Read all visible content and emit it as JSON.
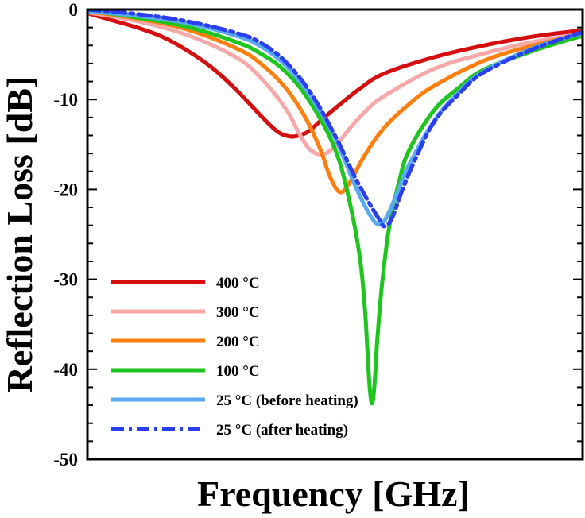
{
  "chart_data": {
    "type": "line",
    "title": "",
    "xlabel": "Frequency [GHz]",
    "ylabel": "Reflection Loss [dB]",
    "ylim": [
      -50,
      0
    ],
    "xlim": [
      0,
      1
    ],
    "yticks": [
      0,
      -10,
      -20,
      -30,
      -40,
      -50
    ],
    "grid": false,
    "legend_position": "bottom-left",
    "series": [
      {
        "name": "400 °C",
        "color": "#d40e0e",
        "style": "solid",
        "points": [
          [
            0,
            -0.4
          ],
          [
            0.05,
            -1.2
          ],
          [
            0.1,
            -2.0
          ],
          [
            0.15,
            -3.0
          ],
          [
            0.2,
            -4.5
          ],
          [
            0.25,
            -6.4
          ],
          [
            0.3,
            -8.9
          ],
          [
            0.35,
            -11.8
          ],
          [
            0.38,
            -13.4
          ],
          [
            0.4,
            -14.0
          ],
          [
            0.42,
            -14.1
          ],
          [
            0.445,
            -13.6
          ],
          [
            0.47,
            -12.4
          ],
          [
            0.5,
            -11.0
          ],
          [
            0.55,
            -8.8
          ],
          [
            0.6,
            -7.1
          ],
          [
            0.7,
            -5.3
          ],
          [
            0.8,
            -4.0
          ],
          [
            0.9,
            -3.0
          ],
          [
            1.0,
            -2.3
          ]
        ]
      },
      {
        "name": "300 °C",
        "color": "#f8a8a8",
        "style": "solid",
        "points": [
          [
            0,
            -0.3
          ],
          [
            0.1,
            -1.3
          ],
          [
            0.2,
            -2.8
          ],
          [
            0.3,
            -5.3
          ],
          [
            0.35,
            -7.6
          ],
          [
            0.4,
            -11.0
          ],
          [
            0.43,
            -14.0
          ],
          [
            0.45,
            -15.6
          ],
          [
            0.475,
            -16.1
          ],
          [
            0.5,
            -15.2
          ],
          [
            0.53,
            -13.2
          ],
          [
            0.56,
            -11.4
          ],
          [
            0.6,
            -9.6
          ],
          [
            0.7,
            -6.6
          ],
          [
            0.8,
            -4.9
          ],
          [
            0.9,
            -3.6
          ],
          [
            1.0,
            -2.7
          ]
        ]
      },
      {
        "name": "200 °C",
        "color": "#ff7f0e",
        "style": "solid",
        "points": [
          [
            0,
            -0.2
          ],
          [
            0.1,
            -1.0
          ],
          [
            0.2,
            -2.2
          ],
          [
            0.3,
            -4.3
          ],
          [
            0.35,
            -6.0
          ],
          [
            0.4,
            -8.7
          ],
          [
            0.44,
            -12.0
          ],
          [
            0.47,
            -15.5
          ],
          [
            0.49,
            -18.6
          ],
          [
            0.51,
            -20.3
          ],
          [
            0.53,
            -19.2
          ],
          [
            0.56,
            -16.2
          ],
          [
            0.6,
            -13.1
          ],
          [
            0.65,
            -10.5
          ],
          [
            0.7,
            -8.5
          ],
          [
            0.8,
            -5.7
          ],
          [
            0.9,
            -4.0
          ],
          [
            1.0,
            -2.7
          ]
        ]
      },
      {
        "name": "100 °C",
        "color": "#1ec51e",
        "style": "solid",
        "points": [
          [
            0,
            -0.1
          ],
          [
            0.1,
            -0.9
          ],
          [
            0.2,
            -1.9
          ],
          [
            0.3,
            -3.6
          ],
          [
            0.35,
            -4.9
          ],
          [
            0.4,
            -6.9
          ],
          [
            0.45,
            -10.3
          ],
          [
            0.5,
            -15.5
          ],
          [
            0.53,
            -21.5
          ],
          [
            0.55,
            -27.5
          ],
          [
            0.56,
            -33.0
          ],
          [
            0.565,
            -37.5
          ],
          [
            0.57,
            -42.0
          ],
          [
            0.575,
            -43.8
          ],
          [
            0.58,
            -41.5
          ],
          [
            0.585,
            -37.0
          ],
          [
            0.595,
            -30.5
          ],
          [
            0.61,
            -24.0
          ],
          [
            0.63,
            -19.0
          ],
          [
            0.65,
            -15.6
          ],
          [
            0.7,
            -11.2
          ],
          [
            0.75,
            -8.7
          ],
          [
            0.8,
            -6.7
          ],
          [
            0.9,
            -4.6
          ],
          [
            1.0,
            -2.9
          ]
        ]
      },
      {
        "name": "25 °C (before heating)",
        "color": "#5aaaf0",
        "style": "solid",
        "points": [
          [
            0,
            -0.2
          ],
          [
            0.1,
            -0.7
          ],
          [
            0.2,
            -1.5
          ],
          [
            0.3,
            -2.9
          ],
          [
            0.35,
            -4.1
          ],
          [
            0.4,
            -6.2
          ],
          [
            0.45,
            -9.6
          ],
          [
            0.5,
            -14.3
          ],
          [
            0.54,
            -19.5
          ],
          [
            0.56,
            -21.8
          ],
          [
            0.58,
            -23.6
          ],
          [
            0.595,
            -23.8
          ],
          [
            0.61,
            -22.4
          ],
          [
            0.63,
            -19.8
          ],
          [
            0.65,
            -17.2
          ],
          [
            0.7,
            -12.4
          ],
          [
            0.75,
            -9.2
          ],
          [
            0.8,
            -6.9
          ],
          [
            0.9,
            -4.3
          ],
          [
            1.0,
            -2.6
          ]
        ]
      },
      {
        "name": "25 °C (after heating)",
        "color": "#2a3ff2",
        "style": "dashdot",
        "points": [
          [
            0,
            0.0
          ],
          [
            0.1,
            -0.5
          ],
          [
            0.2,
            -1.3
          ],
          [
            0.3,
            -2.6
          ],
          [
            0.35,
            -3.7
          ],
          [
            0.4,
            -5.8
          ],
          [
            0.45,
            -9.2
          ],
          [
            0.5,
            -14.0
          ],
          [
            0.54,
            -18.6
          ],
          [
            0.57,
            -21.6
          ],
          [
            0.59,
            -23.4
          ],
          [
            0.6,
            -24.1
          ],
          [
            0.615,
            -23.2
          ],
          [
            0.635,
            -20.2
          ],
          [
            0.66,
            -16.9
          ],
          [
            0.7,
            -12.5
          ],
          [
            0.75,
            -9.4
          ],
          [
            0.8,
            -7.0
          ],
          [
            0.9,
            -4.4
          ],
          [
            1.0,
            -2.5
          ]
        ]
      }
    ]
  }
}
